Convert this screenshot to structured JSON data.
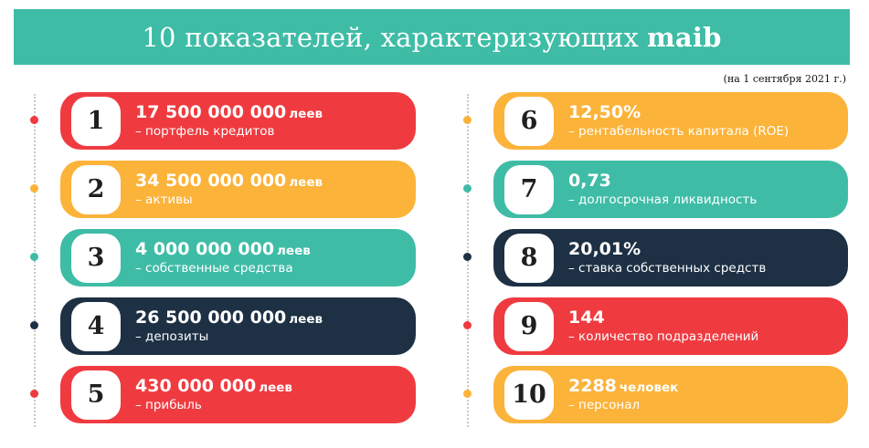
{
  "header": {
    "title": "10 показателей, характеризующих",
    "brand": "maib"
  },
  "date_note": "(на 1 сентября 2021 г.)",
  "colors": {
    "red": "#ef3b40",
    "orange": "#fbb33a",
    "teal": "#3fbca6",
    "navy": "#1d3044"
  },
  "indicators": [
    {
      "number": "1",
      "value": "17 500 000 000",
      "unit": "леев",
      "desc": "– портфель кредитов",
      "color": "red"
    },
    {
      "number": "2",
      "value": "34 500 000 000",
      "unit": "леев",
      "desc": "– активы",
      "color": "orange"
    },
    {
      "number": "3",
      "value": "4 000 000 000",
      "unit": "леев",
      "desc": "– собственные средства",
      "color": "teal"
    },
    {
      "number": "4",
      "value": "26 500 000 000",
      "unit": "леев",
      "desc": "– депозиты",
      "color": "navy"
    },
    {
      "number": "5",
      "value": "430 000 000",
      "unit": "леев",
      "desc": "– прибыль",
      "color": "red"
    },
    {
      "number": "6",
      "value": "12,50%",
      "unit": "",
      "desc": "– рентабельность капитала (ROE)",
      "color": "orange"
    },
    {
      "number": "7",
      "value": "0,73",
      "unit": "",
      "desc": "– долгосрочная ликвидность",
      "color": "teal"
    },
    {
      "number": "8",
      "value": "20,01%",
      "unit": "",
      "desc": "– ставка собственных средств",
      "color": "navy"
    },
    {
      "number": "9",
      "value": "144",
      "unit": "",
      "desc": "– количество подразделений",
      "color": "red"
    },
    {
      "number": "10",
      "value": "2288",
      "unit": "человек",
      "desc": "– персонал",
      "color": "orange"
    }
  ]
}
